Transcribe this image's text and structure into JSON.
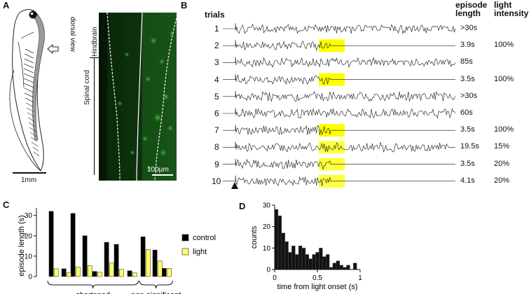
{
  "panels": {
    "a": {
      "letter": "A",
      "dorsal_view_label": "dorsal view",
      "hindbrain_label": "Hindbrain",
      "spinal_cord_label": "Spinal cord",
      "scale_bar_tadpole": "1mm",
      "scale_bar_micrograph": "100µm"
    },
    "b": {
      "letter": "B",
      "trials_label": "trials",
      "episode_length_header": [
        "episode",
        "length"
      ],
      "light_intensity_header": [
        "light",
        "intensity"
      ],
      "trials": [
        {
          "number": "1",
          "episode_length": ">30s",
          "light_intensity": "",
          "light_on": false
        },
        {
          "number": "2",
          "episode_length": "3.9s",
          "light_intensity": "100%",
          "light_on": true
        },
        {
          "number": "3",
          "episode_length": "85s",
          "light_intensity": "",
          "light_on": false
        },
        {
          "number": "4",
          "episode_length": "3.5s",
          "light_intensity": "100%",
          "light_on": true
        },
        {
          "number": "5",
          "episode_length": ">30s",
          "light_intensity": "",
          "light_on": false
        },
        {
          "number": "6",
          "episode_length": "60s",
          "light_intensity": "",
          "light_on": false
        },
        {
          "number": "7",
          "episode_length": "3.5s",
          "light_intensity": "100%",
          "light_on": true
        },
        {
          "number": "8",
          "episode_length": "19.5s",
          "light_intensity": "15%",
          "light_on": true
        },
        {
          "number": "9",
          "episode_length": "3.5s",
          "light_intensity": "20%",
          "light_on": true
        },
        {
          "number": "10",
          "episode_length": "4.1s",
          "light_intensity": "20%",
          "light_on": true
        }
      ],
      "light_color": "#ffff00"
    },
    "c": {
      "letter": "C",
      "chart_data": {
        "type": "bar",
        "ylabel": "episode length (s)",
        "ylim": [
          0,
          33
        ],
        "yticks": [
          0,
          10,
          20,
          30
        ],
        "series": [
          {
            "name": "control",
            "color": "#000000",
            "values": [
              32,
              3.8,
              31,
              20,
              2.5,
              16.8,
              15.8,
              2.8,
              19.5,
              13,
              4
            ]
          },
          {
            "name": "light",
            "color": "#ffff66",
            "values": [
              3.8,
              1.8,
              4.6,
              5.3,
              2.1,
              6.6,
              3.5,
              1.8,
              13.3,
              7.6,
              4
            ]
          }
        ],
        "groups": [
          {
            "label": "shortened",
            "count": 8
          },
          {
            "label": "non-significant",
            "count": 3
          }
        ],
        "legend_placement": "right"
      }
    },
    "d": {
      "letter": "D",
      "chart_data": {
        "type": "bar",
        "xlabel": "time from light onset (s)",
        "ylabel": "counts",
        "xlim": [
          0,
          1
        ],
        "ylim": [
          0,
          30
        ],
        "xticks": [
          0,
          0.5,
          1
        ],
        "yticks": [
          0,
          10,
          20,
          30
        ],
        "bin_width": 0.04,
        "bin_starts": [
          0,
          0.04,
          0.08,
          0.12,
          0.16,
          0.2,
          0.24,
          0.28,
          0.32,
          0.36,
          0.4,
          0.44,
          0.48,
          0.52,
          0.56,
          0.6,
          0.64,
          0.68,
          0.72,
          0.76,
          0.8,
          0.84,
          0.88,
          0.92
        ],
        "values": [
          28,
          25,
          17,
          13,
          8,
          11,
          7,
          11,
          10,
          7,
          5,
          7,
          8,
          10,
          6,
          7,
          1,
          3,
          4,
          2,
          1,
          2,
          0,
          3
        ]
      }
    }
  }
}
